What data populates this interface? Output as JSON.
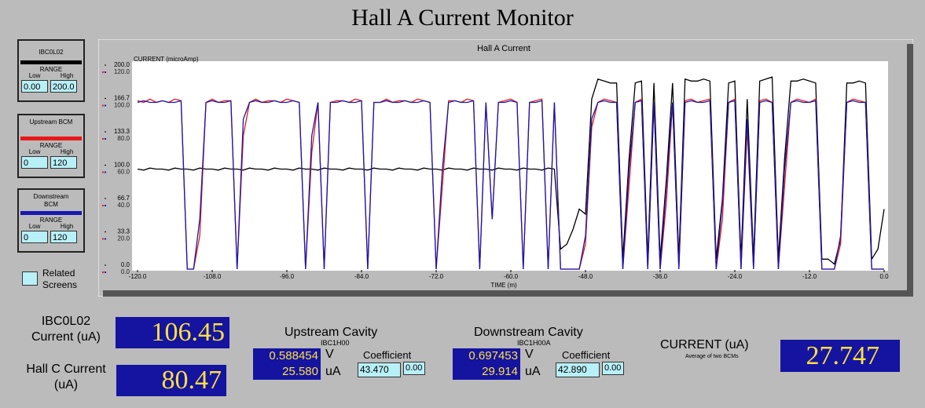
{
  "title": "Hall A Current Monitor",
  "panels": [
    {
      "range": "RANGE",
      "low_label": "Low",
      "high_label": "High",
      "low": "0.00",
      "high": "200.0"
    },
    {
      "range": "RANGE",
      "low_label": "Low",
      "high_label": "High",
      "low": "0",
      "high": "120"
    },
    {
      "range": "RANGE",
      "low_label": "Low",
      "high_label": "High",
      "low": "0",
      "high": "120"
    }
  ],
  "related_screens": "Related Screens",
  "chart_data": {
    "type": "line",
    "title": "Hall A Current",
    "ylabel": "CURRENT (microAmp)",
    "xlabel": "TIME (m)",
    "x": [
      -120,
      -119,
      -118,
      -117,
      -116,
      -115,
      -114,
      -113,
      -112,
      -111,
      -110,
      -109,
      -108,
      -107,
      -106,
      -105,
      -104,
      -103,
      -102,
      -101,
      -100,
      -99,
      -98,
      -97,
      -96,
      -95,
      -94,
      -93,
      -92,
      -91,
      -90,
      -89,
      -88,
      -87,
      -86,
      -85,
      -84,
      -83,
      -82,
      -81,
      -80,
      -79,
      -78,
      -77,
      -76,
      -75,
      -74,
      -73,
      -72,
      -71,
      -70,
      -69,
      -68,
      -67,
      -66,
      -65,
      -64,
      -63,
      -62,
      -61,
      -60,
      -59,
      -58,
      -57,
      -56,
      -55,
      -54,
      -53,
      -52,
      -51,
      -50,
      -49,
      -48,
      -47,
      -46,
      -45,
      -44,
      -43,
      -42,
      -41,
      -40,
      -39,
      -38,
      -37,
      -36,
      -35,
      -34,
      -33,
      -32,
      -31,
      -30,
      -29,
      -28,
      -27,
      -26,
      -25,
      -24,
      -23,
      -22,
      -21,
      -20,
      -19,
      -18,
      -17,
      -16,
      -15,
      -14,
      -13,
      -12,
      -11,
      -10,
      -9,
      -8,
      -7,
      -6,
      -5,
      -4,
      -3,
      -2,
      -1,
      0
    ],
    "series": [
      {
        "name": "IBC0L02",
        "color": "#000000",
        "axis": "y2",
        "values": [
          100,
          99,
          101,
          100,
          100,
          99,
          101,
          100,
          100,
          99,
          101,
          100,
          100,
          99,
          101,
          100,
          100,
          99,
          101,
          100,
          100,
          99,
          101,
          100,
          100,
          99,
          101,
          100,
          100,
          99,
          101,
          100,
          100,
          99,
          101,
          100,
          100,
          99,
          101,
          100,
          100,
          99,
          101,
          100,
          100,
          99,
          101,
          100,
          100,
          99,
          101,
          100,
          100,
          99,
          101,
          100,
          100,
          99,
          101,
          100,
          100,
          99,
          101,
          100,
          100,
          99,
          101,
          100,
          20,
          25,
          40,
          60,
          55,
          170,
          190,
          188,
          186,
          186,
          10,
          110,
          186,
          188,
          10,
          186,
          10,
          90,
          186,
          10,
          190,
          188,
          188,
          190,
          188,
          10,
          70,
          186,
          188,
          10,
          170,
          10,
          188,
          190,
          192,
          10,
          110,
          188,
          188,
          190,
          188,
          186,
          10,
          10,
          5,
          30,
          186,
          186,
          188,
          186,
          10,
          20,
          60
        ]
      },
      {
        "name": "Upstream BCM",
        "color": "#e81818",
        "values": [
          101,
          100,
          102,
          100,
          101,
          100,
          102,
          101,
          0,
          0,
          20,
          100,
          102,
          100,
          101,
          101,
          0,
          80,
          100,
          102,
          100,
          101,
          101,
          100,
          102,
          101,
          100,
          0,
          70,
          100,
          0,
          100,
          101,
          101,
          100,
          102,
          101,
          0,
          100,
          100,
          102,
          100,
          101,
          101,
          100,
          102,
          101,
          100,
          0,
          50,
          101,
          101,
          100,
          102,
          101,
          0,
          100,
          30,
          100,
          101,
          102,
          100,
          0,
          100,
          101,
          102,
          0,
          100,
          0,
          0,
          0,
          0,
          15,
          85,
          100,
          102,
          101,
          100,
          0,
          50,
          100,
          102,
          0,
          100,
          0,
          40,
          100,
          0,
          101,
          102,
          100,
          101,
          102,
          0,
          30,
          100,
          102,
          0,
          85,
          0,
          101,
          102,
          100,
          0,
          50,
          100,
          102,
          101,
          100,
          102,
          0,
          0,
          0,
          15,
          100,
          102,
          101,
          100,
          0,
          0,
          0
        ]
      },
      {
        "name": "Downstream BCM",
        "color": "#1818b0",
        "values": [
          100,
          101,
          100,
          100,
          101,
          100,
          100,
          101,
          0,
          0,
          30,
          100,
          101,
          100,
          100,
          101,
          0,
          90,
          100,
          101,
          100,
          100,
          101,
          100,
          100,
          101,
          100,
          0,
          80,
          100,
          0,
          100,
          100,
          101,
          100,
          100,
          101,
          0,
          100,
          100,
          101,
          100,
          100,
          101,
          100,
          100,
          101,
          100,
          0,
          60,
          100,
          101,
          100,
          100,
          101,
          0,
          100,
          30,
          100,
          100,
          101,
          100,
          0,
          100,
          100,
          101,
          0,
          100,
          0,
          0,
          0,
          0,
          20,
          90,
          100,
          101,
          100,
          100,
          0,
          60,
          100,
          101,
          0,
          100,
          0,
          50,
          100,
          0,
          100,
          101,
          100,
          100,
          101,
          0,
          40,
          100,
          101,
          0,
          90,
          0,
          100,
          101,
          100,
          0,
          60,
          100,
          101,
          100,
          100,
          101,
          0,
          0,
          0,
          20,
          100,
          101,
          100,
          100,
          0,
          0,
          0
        ]
      }
    ],
    "xlim": [
      -120,
      0
    ],
    "xticks": [
      {
        "value": -120,
        "label": "-120.0"
      },
      {
        "value": -108,
        "label": "-108.0"
      },
      {
        "value": -96,
        "label": "-96.0"
      },
      {
        "value": -84,
        "label": "-84.0"
      },
      {
        "value": -72,
        "label": "-72.0"
      },
      {
        "value": -60,
        "label": "-60.0"
      },
      {
        "value": -48,
        "label": "-48.0"
      },
      {
        "value": -36,
        "label": "-36.0"
      },
      {
        "value": -24,
        "label": "-24.0"
      },
      {
        "value": -12,
        "label": "-12.0"
      },
      {
        "value": 0,
        "label": "0.0"
      }
    ],
    "ylim": [
      0,
      120
    ],
    "yticks": [
      {
        "value": 0,
        "label": "0.0"
      },
      {
        "value": 20,
        "label": "20.0"
      },
      {
        "value": 40,
        "label": "40.0"
      },
      {
        "value": 60,
        "label": "60.0"
      },
      {
        "value": 80,
        "label": "80.0"
      },
      {
        "value": 100,
        "label": "100.0"
      },
      {
        "value": 120,
        "label": "120.0"
      }
    ],
    "y2lim": [
      0,
      200
    ],
    "y2ticks": [
      {
        "value": 0,
        "label": "0.0"
      },
      33.3,
      66.7,
      {
        "value": 100,
        "label": "100.0"
      },
      133.3,
      166.7,
      {
        "value": 200,
        "label": "200.0"
      }
    ],
    "grid": false
  },
  "readouts": {
    "ibc0l02": {
      "label": "IBC0L02 Current (uA)",
      "value": "106.45"
    },
    "hallc": {
      "label": "Hall C Current (uA)",
      "value": "80.47"
    },
    "upstream": {
      "title": "Upstream Cavity",
      "id": "IBC1H00",
      "volts": "0.588454",
      "volts_unit": "V",
      "current": "25.580",
      "current_unit": "uA",
      "coef_label": "Coefficient",
      "coef": "43.470",
      "offset": "0.00"
    },
    "downstream": {
      "title": "Downstream Cavity",
      "id": "IBC1H00A",
      "volts": "0.697453",
      "volts_unit": "V",
      "current": "29.914",
      "current_unit": "uA",
      "coef_label": "Coefficient",
      "coef": "42.890",
      "offset": "0.00"
    },
    "average": {
      "label": "CURRENT (uA)",
      "sublabel": "Average of two BCMs",
      "value": "27.747"
    }
  }
}
